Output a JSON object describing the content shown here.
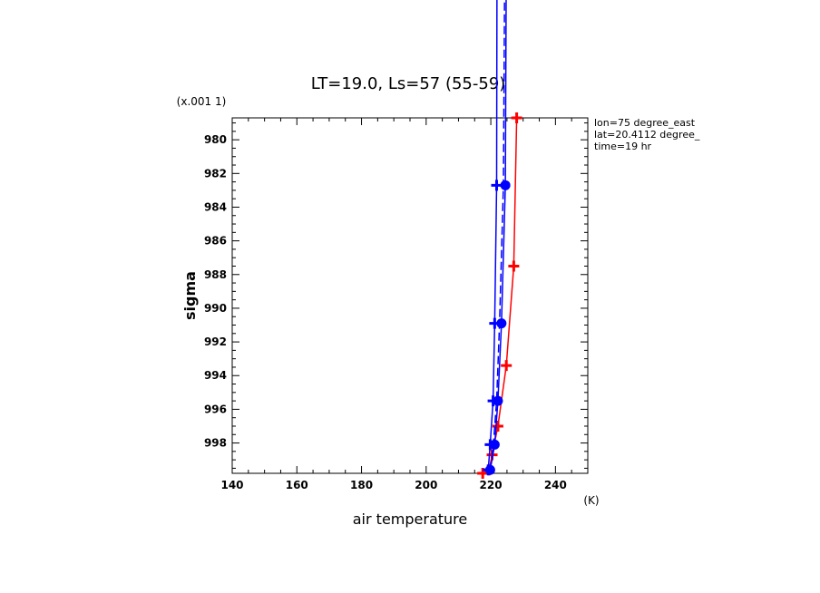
{
  "chart_data": {
    "type": "line",
    "title": "LT=19.0, Ls=57 (55-59)",
    "xlabel": "air temperature",
    "ylabel": "sigma",
    "x_unit": "(K)",
    "y_scale_note": "(x.001 1)",
    "annotations": [
      "lon=75 degree_east",
      "lat=20.4112 degree_",
      "time=19 hr"
    ],
    "xlim": [
      140,
      250
    ],
    "ylim": [
      999.8,
      978.7
    ],
    "y_inverted": true,
    "x_ticks": [
      140,
      160,
      180,
      200,
      220,
      240
    ],
    "y_ticks": [
      980,
      982,
      984,
      986,
      988,
      990,
      992,
      994,
      996,
      998
    ],
    "x_tick_labels": [
      "140",
      "160",
      "180",
      "200",
      "220",
      "240"
    ],
    "y_tick_labels": [
      "980",
      "982",
      "984",
      "986",
      "988",
      "990",
      "992",
      "994",
      "996",
      "998"
    ],
    "grid": false,
    "series": [
      {
        "color": "#ff0000",
        "marker": "plus",
        "style": "solid",
        "x": [
          217.5,
          219.5,
          220.4,
          222.2,
          224.8,
          227.1,
          228.0
        ],
        "y": [
          999.8,
          999.6,
          998.7,
          997.0,
          993.4,
          987.5,
          978.7
        ]
      },
      {
        "color": "#0000ff",
        "marker": "circle",
        "style": "solid",
        "x": [
          219.8,
          221.2,
          222.2,
          223.3,
          224.5,
          225.0
        ],
        "y": [
          999.6,
          998.1,
          995.5,
          990.9,
          982.7,
          960.0
        ]
      },
      {
        "color": "#0000ff",
        "marker": "plus",
        "style": "solid",
        "x": [
          219.2,
          219.8,
          220.7,
          221.2,
          221.8,
          222.0
        ],
        "y": [
          999.6,
          998.1,
          995.5,
          990.9,
          982.7,
          960.0
        ]
      },
      {
        "color": "#0000ff",
        "marker": "none",
        "style": "dashed",
        "x": [
          219.8,
          220.8,
          221.8,
          222.7,
          223.9,
          224.6
        ],
        "y": [
          999.6,
          998.1,
          995.5,
          990.9,
          982.7,
          960.0
        ]
      }
    ]
  }
}
